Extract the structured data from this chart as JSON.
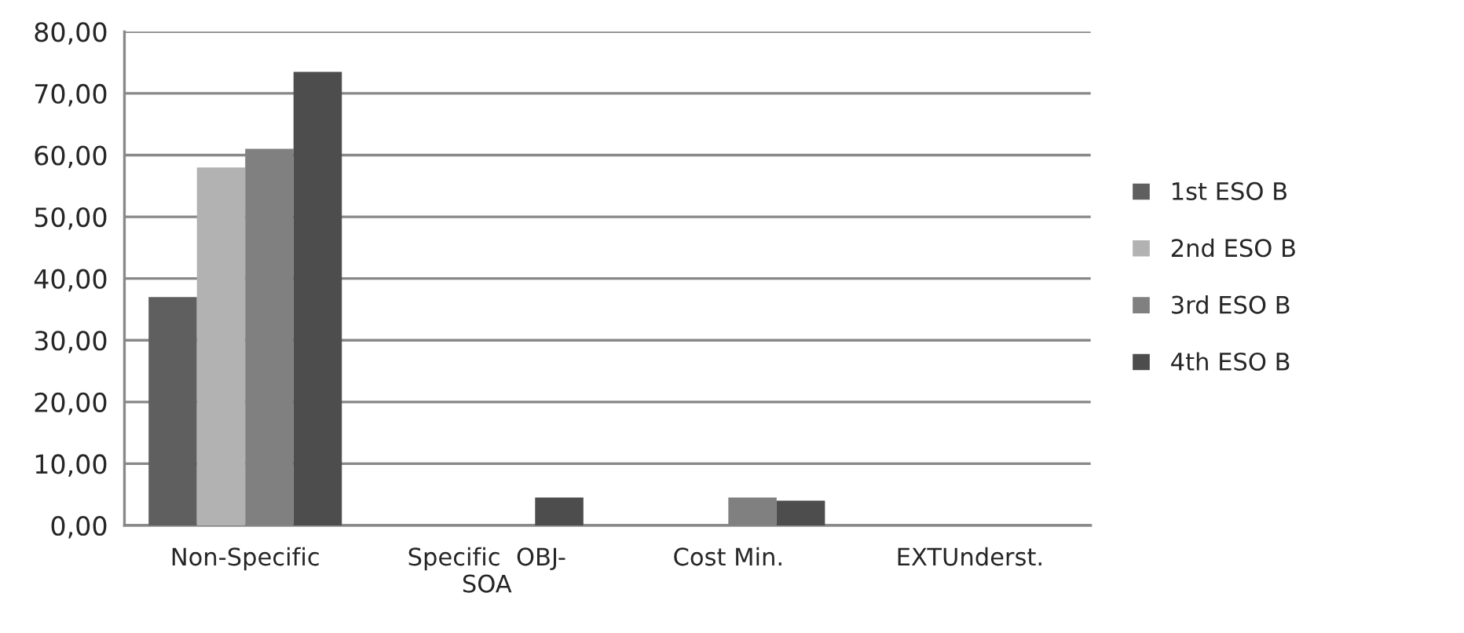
{
  "chart_data": {
    "type": "bar",
    "categories": [
      "Non-Specific",
      "Specific  OBJ-SOA",
      "Cost Min.",
      "EXTUnderst."
    ],
    "series": [
      {
        "name": "1st ESO B",
        "color": "#5f5f5f",
        "values": [
          37,
          0,
          0,
          0
        ]
      },
      {
        "name": "2nd ESO B",
        "color": "#b2b2b2",
        "values": [
          58,
          0,
          0,
          0
        ]
      },
      {
        "name": "3rd ESO B",
        "color": "#808080",
        "values": [
          61,
          0,
          4.5,
          0
        ]
      },
      {
        "name": "4th ESO B",
        "color": "#4d4d4d",
        "values": [
          73.5,
          4.5,
          4,
          0
        ]
      }
    ],
    "ylim": [
      0,
      80
    ],
    "yticks": [
      {
        "value": 0,
        "label": "0,00"
      },
      {
        "value": 10,
        "label": "10,00"
      },
      {
        "value": 20,
        "label": "20,00"
      },
      {
        "value": 30,
        "label": "30,00"
      },
      {
        "value": 40,
        "label": "40,00"
      },
      {
        "value": 50,
        "label": "50,00"
      },
      {
        "value": 60,
        "label": "60,00"
      },
      {
        "value": 70,
        "label": "70,00"
      },
      {
        "value": 80,
        "label": "80,00"
      }
    ],
    "grid": "y",
    "legend": "right"
  }
}
